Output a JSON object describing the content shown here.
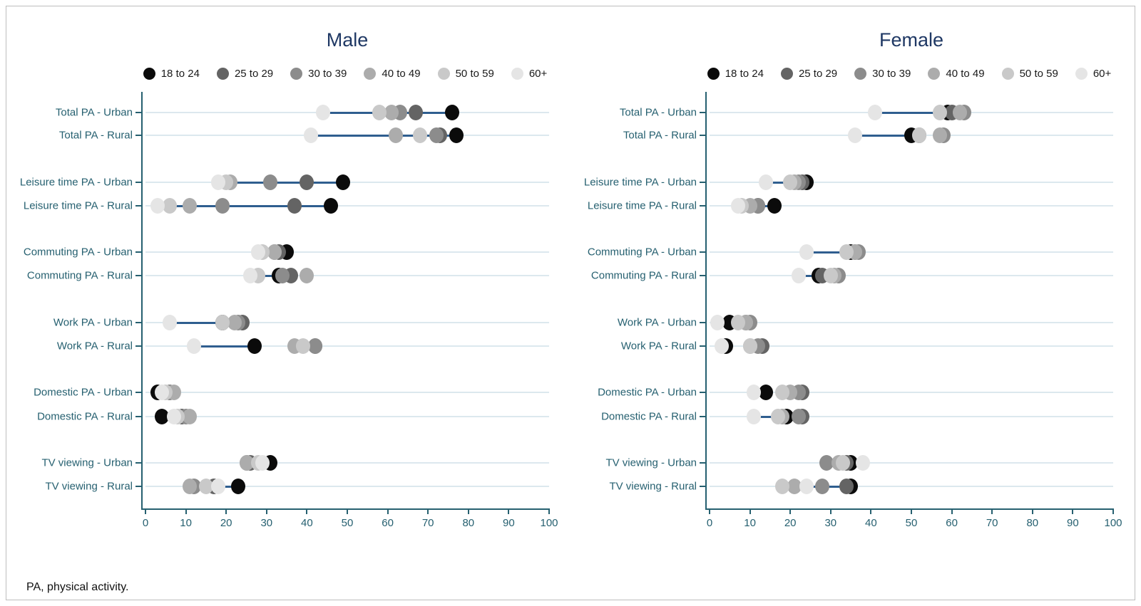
{
  "figure": {
    "footnote": "PA, physical activity.",
    "colors": {
      "title": "#1f3864",
      "axis": "#266070",
      "range_line": "#2f5e8f",
      "gridline": "#dce8ee",
      "border": "#bdbdbd"
    }
  },
  "age_groups": [
    {
      "label": "18 to 24",
      "color": "#0b0b0b"
    },
    {
      "label": "25 to 29",
      "color": "#646464"
    },
    {
      "label": "30 to 39",
      "color": "#8c8c8c"
    },
    {
      "label": "40 to 49",
      "color": "#acacac"
    },
    {
      "label": "50 to 59",
      "color": "#c9c9c9"
    },
    {
      "label": "60+",
      "color": "#e5e5e5"
    }
  ],
  "axis": {
    "min": 0,
    "max": 100,
    "ticks": [
      0,
      10,
      20,
      30,
      40,
      50,
      60,
      70,
      80,
      90,
      100
    ]
  },
  "chart_data": [
    {
      "type": "scatter",
      "title": "Male",
      "xlim": [
        0,
        100
      ],
      "grid": "horizontal",
      "legend_position": "top",
      "categories": [
        "Total PA - Urban",
        "Total PA - Rural",
        "Leisure time PA - Urban",
        "Leisure time PA - Rural",
        "Commuting PA - Urban",
        "Commuting PA - Rural",
        "Work PA - Urban",
        "Work PA - Rural",
        "Domestic PA - Urban",
        "Domestic PA - Rural",
        "TV viewing - Urban",
        "TV viewing - Rural"
      ],
      "series": [
        {
          "name": "18 to 24",
          "values": [
            76,
            77,
            49,
            46,
            35,
            33,
            19,
            27,
            3,
            4,
            31,
            23
          ]
        },
        {
          "name": "25 to 29",
          "values": [
            67,
            73,
            40,
            37,
            33,
            36,
            24,
            42,
            6,
            9,
            26,
            17
          ]
        },
        {
          "name": "30 to 39",
          "values": [
            63,
            72,
            31,
            19,
            32,
            34,
            23,
            42,
            6,
            10,
            25,
            12
          ]
        },
        {
          "name": "40 to 49",
          "values": [
            61,
            62,
            21,
            11,
            32,
            40,
            22,
            37,
            7,
            11,
            25,
            11
          ]
        },
        {
          "name": "50 to 59",
          "values": [
            58,
            68,
            20,
            6,
            29,
            28,
            19,
            39,
            5,
            8,
            28,
            15
          ]
        },
        {
          "name": "60+",
          "values": [
            44,
            41,
            18,
            3,
            28,
            26,
            6,
            12,
            4,
            7,
            29,
            18
          ]
        }
      ]
    },
    {
      "type": "scatter",
      "title": "Female",
      "xlim": [
        0,
        100
      ],
      "grid": "horizontal",
      "legend_position": "top",
      "categories": [
        "Total PA - Urban",
        "Total PA - Rural",
        "Leisure time PA - Urban",
        "Leisure time PA - Rural",
        "Commuting PA - Urban",
        "Commuting PA - Rural",
        "Work PA - Urban",
        "Work PA - Rural",
        "Domestic PA - Urban",
        "Domestic PA - Rural",
        "TV viewing - Urban",
        "TV viewing - Rural"
      ],
      "series": [
        {
          "name": "18 to 24",
          "values": [
            59,
            50,
            24,
            16,
            35,
            27,
            5,
            4,
            14,
            19,
            35,
            35
          ]
        },
        {
          "name": "25 to 29",
          "values": [
            60,
            52,
            23,
            12,
            36,
            28,
            9,
            13,
            23,
            23,
            34,
            34
          ]
        },
        {
          "name": "30 to 39",
          "values": [
            63,
            58,
            22,
            12,
            37,
            32,
            10,
            12,
            22,
            22,
            29,
            28
          ]
        },
        {
          "name": "40 to 49",
          "values": [
            62,
            57,
            21,
            10,
            36,
            31,
            9,
            10,
            20,
            18,
            32,
            21
          ]
        },
        {
          "name": "50 to 59",
          "values": [
            57,
            52,
            20,
            8,
            34,
            30,
            7,
            10,
            18,
            17,
            33,
            18
          ]
        },
        {
          "name": "60+",
          "values": [
            41,
            36,
            14,
            7,
            24,
            22,
            2,
            3,
            11,
            11,
            38,
            24
          ]
        }
      ]
    }
  ]
}
